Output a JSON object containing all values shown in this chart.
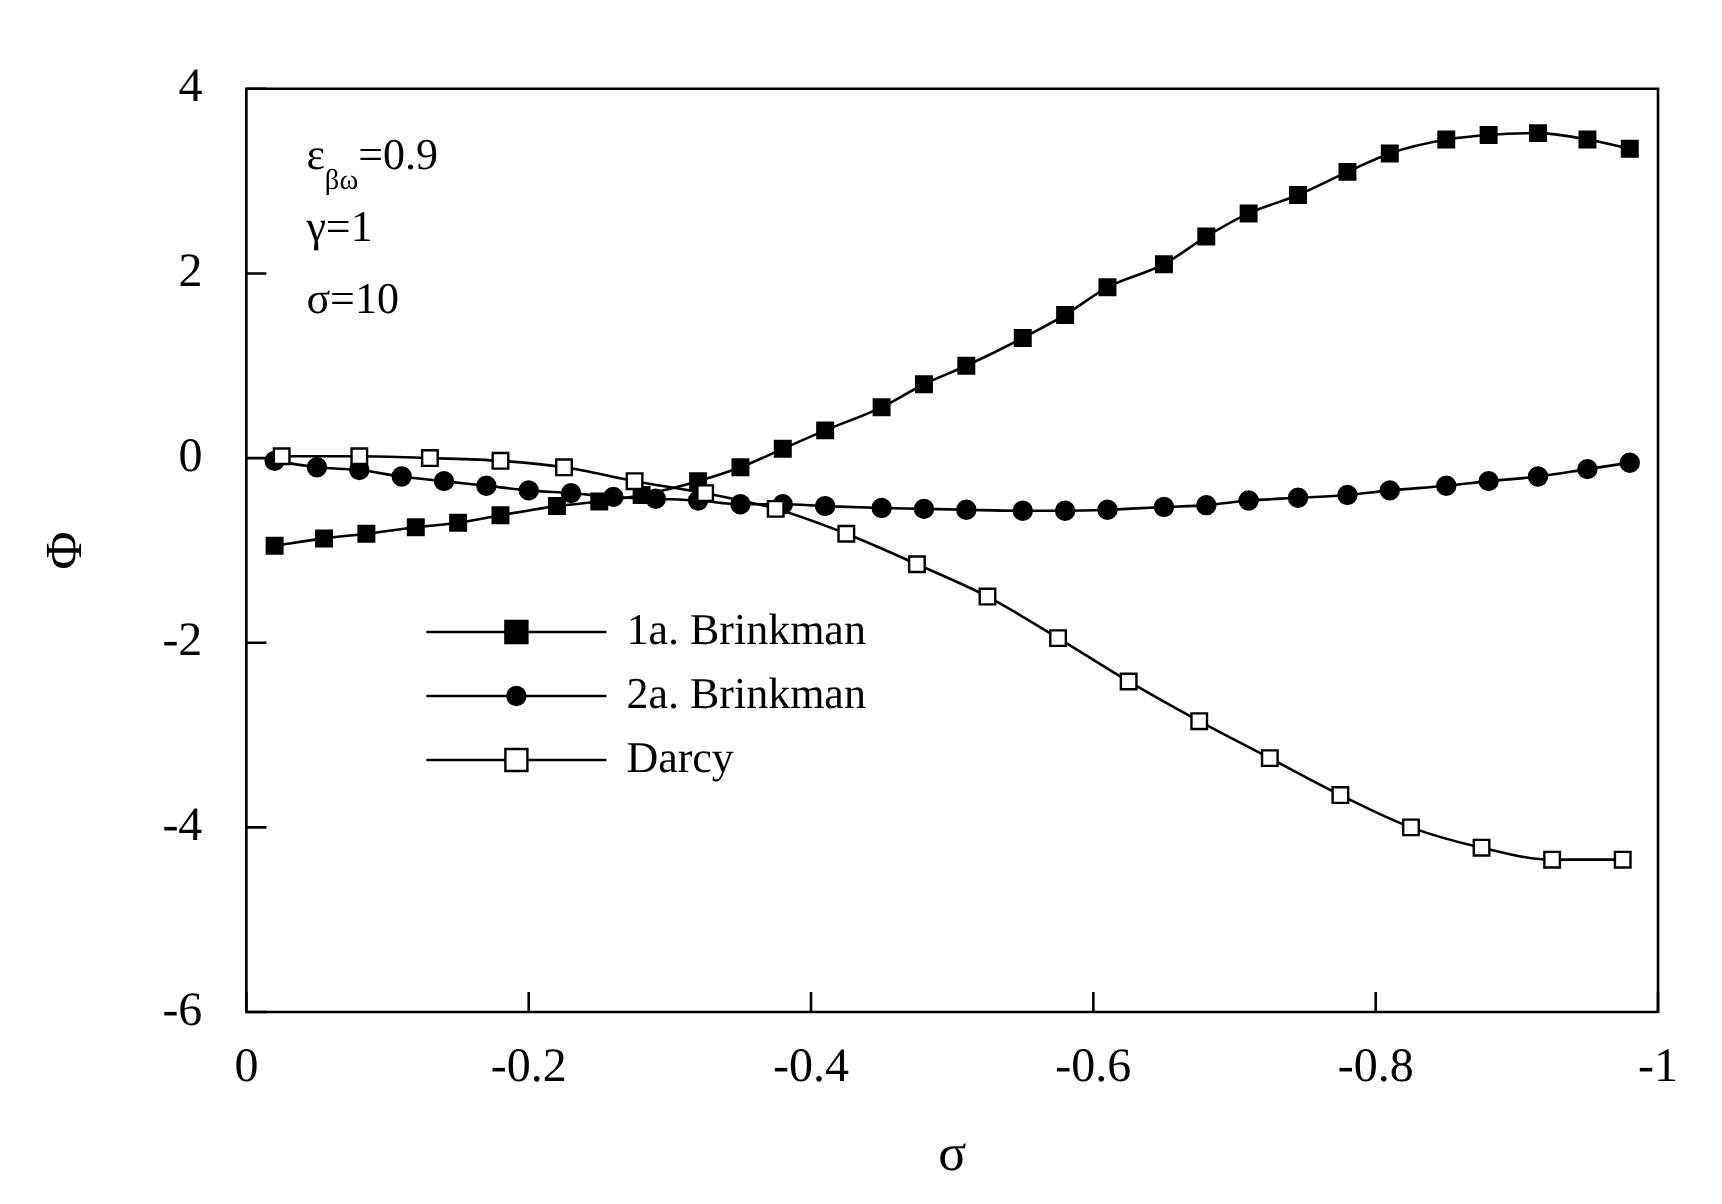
{
  "chart_data": {
    "type": "line",
    "xlabel": "σ",
    "ylabel": "Φ",
    "xlim": [
      0,
      -1
    ],
    "xticks": [
      0,
      -0.2,
      -0.4,
      -0.6,
      -0.8,
      -1
    ],
    "ylim": [
      -6,
      4
    ],
    "yticks": [
      -6,
      -4,
      -2,
      0,
      2,
      4
    ],
    "grid": false,
    "legend": "bottom left",
    "line_style": "solid",
    "annotations": [
      "ε$_{βω}$=0.9",
      "γ=1",
      "σ=10"
    ],
    "series": [
      {
        "name": "1a. Brinkman",
        "color": "#000000",
        "marker": "square",
        "x": [
          -0.02,
          -0.055,
          -0.085,
          -0.12,
          -0.15,
          -0.18,
          -0.22,
          -0.25,
          -0.28,
          -0.32,
          -0.35,
          -0.38,
          -0.41,
          -0.45,
          -0.48,
          -0.51,
          -0.55,
          -0.58,
          -0.61,
          -0.65,
          -0.68,
          -0.71,
          -0.745,
          -0.78,
          -0.81,
          -0.85,
          -0.88,
          -0.915,
          -0.95,
          -0.98
        ],
        "values": [
          -0.95,
          -0.87,
          -0.82,
          -0.75,
          -0.7,
          -0.62,
          -0.52,
          -0.47,
          -0.4,
          -0.25,
          -0.1,
          0.1,
          0.3,
          0.55,
          0.8,
          1.0,
          1.3,
          1.55,
          1.85,
          2.1,
          2.4,
          2.65,
          2.85,
          3.1,
          3.3,
          3.45,
          3.5,
          3.52,
          3.45,
          3.35
        ]
      },
      {
        "name": "2a. Brinkman",
        "color": "#000000",
        "marker": "circle",
        "x": [
          -0.02,
          -0.05,
          -0.08,
          -0.11,
          -0.14,
          -0.17,
          -0.2,
          -0.23,
          -0.26,
          -0.29,
          -0.32,
          -0.35,
          -0.38,
          -0.41,
          -0.45,
          -0.48,
          -0.51,
          -0.55,
          -0.58,
          -0.61,
          -0.65,
          -0.68,
          -0.71,
          -0.745,
          -0.78,
          -0.81,
          -0.85,
          -0.88,
          -0.915,
          -0.95,
          -0.98
        ],
        "values": [
          -0.03,
          -0.1,
          -0.13,
          -0.2,
          -0.25,
          -0.3,
          -0.35,
          -0.38,
          -0.42,
          -0.44,
          -0.46,
          -0.5,
          -0.5,
          -0.52,
          -0.54,
          -0.55,
          -0.56,
          -0.57,
          -0.57,
          -0.56,
          -0.53,
          -0.51,
          -0.46,
          -0.43,
          -0.4,
          -0.35,
          -0.3,
          -0.25,
          -0.2,
          -0.12,
          -0.05
        ]
      },
      {
        "name": "Darcy",
        "color": "#000000",
        "marker": "square",
        "x": [
          -0.025,
          -0.08,
          -0.13,
          -0.18,
          -0.225,
          -0.275,
          -0.325,
          -0.375,
          -0.425,
          -0.475,
          -0.525,
          -0.575,
          -0.625,
          -0.675,
          -0.725,
          -0.775,
          -0.825,
          -0.875,
          -0.925,
          -0.975
        ],
        "values": [
          0.02,
          0.02,
          0.0,
          -0.03,
          -0.1,
          -0.25,
          -0.38,
          -0.55,
          -0.82,
          -1.15,
          -1.5,
          -1.95,
          -2.42,
          -2.85,
          -3.25,
          -3.65,
          -4.0,
          -4.22,
          -4.35,
          -4.35
        ]
      }
    ]
  }
}
